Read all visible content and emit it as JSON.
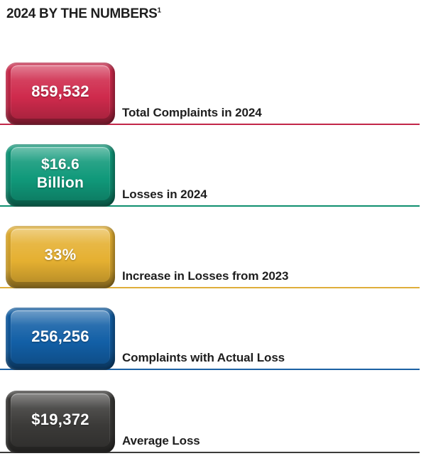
{
  "chart_data": {
    "type": "table",
    "title": "2024 BY THE NUMBERS",
    "footnote_marker": "1",
    "items": [
      {
        "value": "859,532",
        "label": "Total Complaints in 2024",
        "color": "red",
        "color_hex": "#cf2a4c"
      },
      {
        "value": "$16.6\nBillion",
        "label": "Losses in 2024",
        "color": "green",
        "color_hex": "#10997a"
      },
      {
        "value": "33%",
        "label": "Increase in Losses from 2023",
        "color": "gold",
        "color_hex": "#e5b031"
      },
      {
        "value": "256,256",
        "label": "Complaints with Actual Loss",
        "color": "blue",
        "color_hex": "#125fa6"
      },
      {
        "value": "$19,372",
        "label": "Average Loss",
        "color": "dark",
        "color_hex": "#3b3a38"
      }
    ]
  },
  "colors": {
    "red_face": "#cf2a4c",
    "red_line": "#c22749",
    "green_face": "#10997a",
    "green_line": "#0f8f6f",
    "gold_face": "#e5b031",
    "gold_line": "#dfae3a",
    "blue_face": "#125fa6",
    "blue_line": "#1c61a4",
    "dark_face": "#3b3a38",
    "dark_line": "#3c3c3a",
    "rim_green": "#5e9747"
  }
}
